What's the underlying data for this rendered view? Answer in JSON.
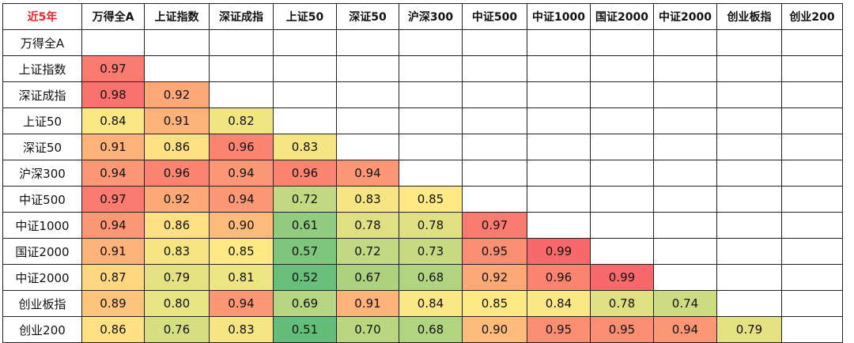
{
  "corner_label": "近5年",
  "colors": {
    "high": "#f8696b",
    "mid": "#ffe984",
    "low": "#63be7b",
    "corner_text": "#e8262a"
  },
  "chart_data": {
    "type": "heatmap",
    "title": "近5年",
    "columns": [
      "万得全A",
      "上证指数",
      "深证成指",
      "上证50",
      "深证50",
      "沪深300",
      "中证500",
      "中证1000",
      "国证2000",
      "中证2000",
      "创业板指",
      "创业200"
    ],
    "rows": [
      "万得全A",
      "上证指数",
      "深证成指",
      "上证50",
      "深证50",
      "沪深300",
      "中证500",
      "中证1000",
      "国证2000",
      "中证2000",
      "创业板指",
      "创业200"
    ],
    "values": [
      [
        null,
        null,
        null,
        null,
        null,
        null,
        null,
        null,
        null,
        null,
        null,
        null
      ],
      [
        0.97,
        null,
        null,
        null,
        null,
        null,
        null,
        null,
        null,
        null,
        null,
        null
      ],
      [
        0.98,
        0.92,
        null,
        null,
        null,
        null,
        null,
        null,
        null,
        null,
        null,
        null
      ],
      [
        0.84,
        0.91,
        0.82,
        null,
        null,
        null,
        null,
        null,
        null,
        null,
        null,
        null
      ],
      [
        0.91,
        0.86,
        0.96,
        0.83,
        null,
        null,
        null,
        null,
        null,
        null,
        null,
        null
      ],
      [
        0.94,
        0.96,
        0.94,
        0.96,
        0.94,
        null,
        null,
        null,
        null,
        null,
        null,
        null
      ],
      [
        0.97,
        0.92,
        0.94,
        0.72,
        0.83,
        0.85,
        null,
        null,
        null,
        null,
        null,
        null
      ],
      [
        0.94,
        0.86,
        0.9,
        0.61,
        0.78,
        0.78,
        0.97,
        null,
        null,
        null,
        null,
        null
      ],
      [
        0.91,
        0.83,
        0.85,
        0.57,
        0.72,
        0.73,
        0.95,
        0.99,
        null,
        null,
        null,
        null
      ],
      [
        0.87,
        0.79,
        0.81,
        0.52,
        0.67,
        0.68,
        0.92,
        0.96,
        0.99,
        null,
        null,
        null
      ],
      [
        0.89,
        0.8,
        0.94,
        0.69,
        0.91,
        0.84,
        0.85,
        0.84,
        0.78,
        0.74,
        null,
        null
      ],
      [
        0.86,
        0.76,
        0.83,
        0.51,
        0.7,
        0.68,
        0.9,
        0.95,
        0.95,
        0.94,
        0.79,
        null
      ]
    ],
    "value_range": [
      0.51,
      0.99
    ]
  }
}
